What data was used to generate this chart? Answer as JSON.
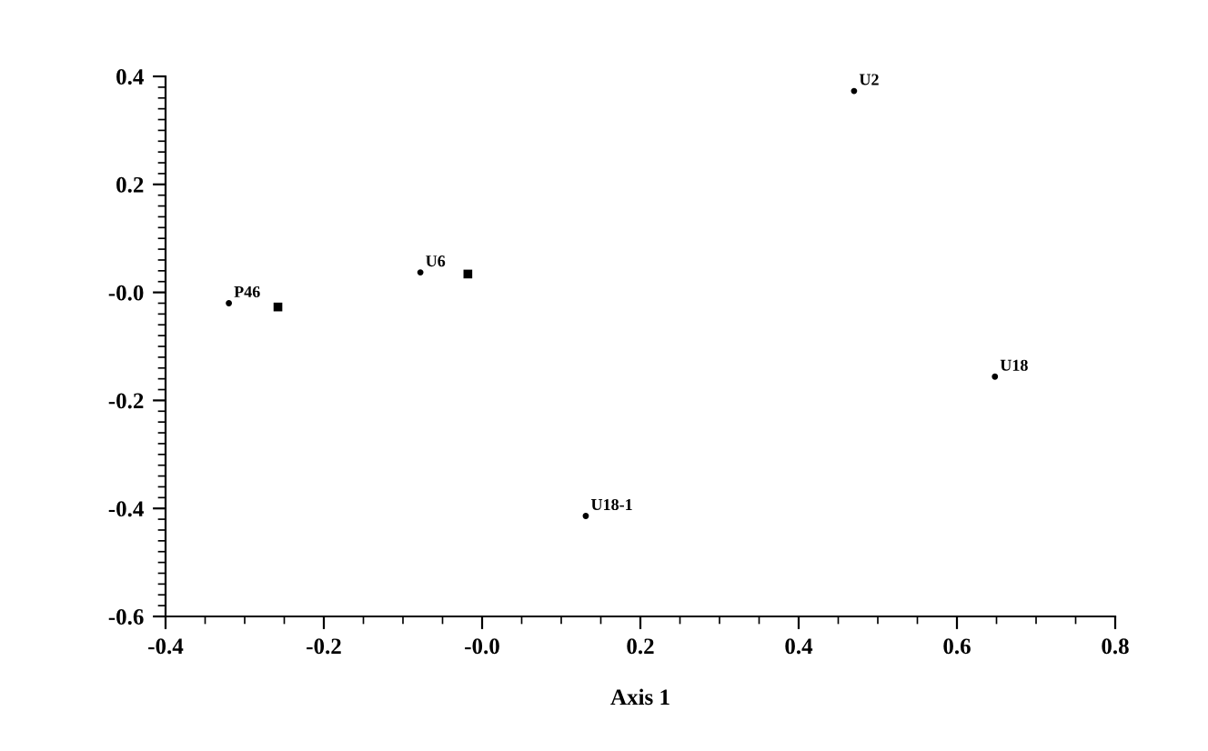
{
  "chart_data": {
    "type": "scatter",
    "xlabel": "Axis 1",
    "xlim": [
      -0.4,
      0.8
    ],
    "xticks": [
      -0.4,
      -0.2,
      {
        "value": 0,
        "label": "-0.0"
      },
      0.2,
      0.4,
      0.6,
      0.8
    ],
    "ylim": [
      -0.6,
      0.4
    ],
    "yticks": [
      -0.6,
      -0.4,
      -0.2,
      {
        "value": 0,
        "label": "-0.0"
      },
      0.2,
      0.4
    ],
    "grid": false,
    "series": [
      {
        "color": "#000000",
        "marker": "circle",
        "x": [
          0.47,
          0.648,
          0.131,
          -0.078,
          -0.32
        ],
        "values": [
          0.373,
          -0.156,
          -0.414,
          0.037,
          -0.02
        ],
        "value_labels": [
          "U2",
          "U18",
          "U18-1",
          "U6",
          "P46"
        ]
      },
      {
        "color": "#000000",
        "marker": "square",
        "x": [
          -0.018,
          -0.258
        ],
        "values": [
          0.034,
          -0.027
        ]
      }
    ]
  }
}
